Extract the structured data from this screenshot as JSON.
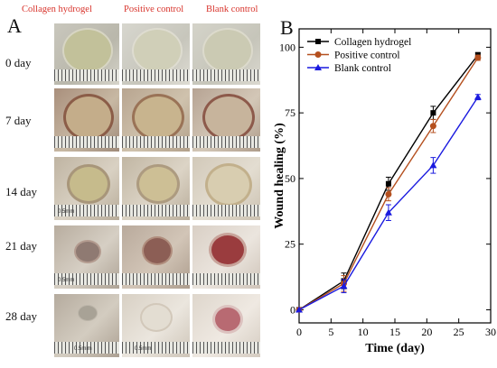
{
  "panel_a": {
    "letter": "A",
    "columns": [
      "Collagen hydrogel",
      "Positive control",
      "Blank control"
    ],
    "rows": [
      "0 day",
      "7 day",
      "14 day",
      "21 day",
      "28 day"
    ],
    "ruler_labels": [
      "0.5mm",
      "0.5mim",
      "0.5mm"
    ]
  },
  "panel_b": {
    "letter": "B"
  },
  "chart_data": {
    "type": "line",
    "xlabel": "Time (day)",
    "ylabel": "Wound healing (%)",
    "xlim": [
      0,
      30
    ],
    "ylim": [
      -5,
      107
    ],
    "xticks": [
      0,
      5,
      10,
      15,
      20,
      25,
      30
    ],
    "yticks": [
      0,
      25,
      50,
      75,
      100
    ],
    "x": [
      0,
      7,
      14,
      21,
      28
    ],
    "legend_position": "top-left",
    "series": [
      {
        "name": "Collagen hydrogel",
        "color": "#000000",
        "marker": "square",
        "values": [
          0,
          11,
          48,
          75,
          97
        ],
        "errors": [
          0,
          3,
          2.5,
          2.5,
          1
        ]
      },
      {
        "name": "Positive control",
        "color": "#b5501f",
        "marker": "circle",
        "values": [
          0,
          10,
          44,
          70,
          96
        ],
        "errors": [
          0,
          3,
          2.5,
          2.5,
          1
        ]
      },
      {
        "name": "Blank control",
        "color": "#1a1adf",
        "marker": "triangle",
        "values": [
          0,
          9,
          37,
          55,
          81
        ],
        "errors": [
          0,
          2.5,
          3,
          3,
          1
        ]
      }
    ]
  }
}
